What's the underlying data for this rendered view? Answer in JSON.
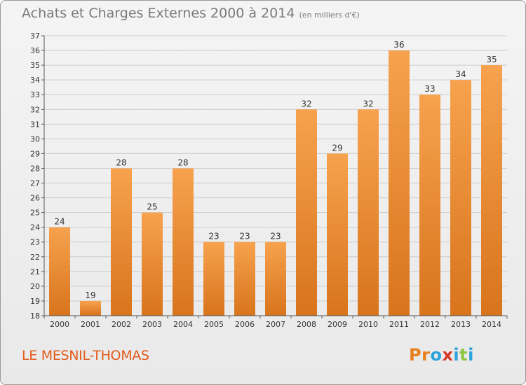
{
  "header": {
    "title": "Achats et Charges Externes 2000 à 2014",
    "subtitle": "(en milliers d'€)"
  },
  "footer": {
    "place": "LE MESNIL-THOMAS",
    "logo_text": "Proxiti",
    "logo_colors": [
      "#e87f1e",
      "#e87f1e",
      "#2aa3d9",
      "#d6382a",
      "#2aa3d9",
      "#8cc63f",
      "#2aa3d9"
    ]
  },
  "colors": {
    "bar_light": "#f7a24e",
    "bar_dark": "#d8741c",
    "grid": "#cccccc",
    "axis": "#555555",
    "text": "#333333"
  },
  "chart_data": {
    "type": "bar",
    "categories": [
      "2000",
      "2001",
      "2002",
      "2003",
      "2004",
      "2005",
      "2006",
      "2007",
      "2008",
      "2009",
      "2010",
      "2011",
      "2012",
      "2013",
      "2014"
    ],
    "values": [
      24,
      19,
      28,
      25,
      28,
      23,
      23,
      23,
      32,
      29,
      32,
      36,
      33,
      34,
      35
    ],
    "ylim": [
      18,
      37
    ],
    "yticks": [
      18,
      19,
      20,
      21,
      22,
      23,
      24,
      25,
      26,
      27,
      28,
      29,
      30,
      31,
      32,
      33,
      34,
      35,
      36,
      37
    ],
    "grid": true,
    "legend": "none"
  }
}
